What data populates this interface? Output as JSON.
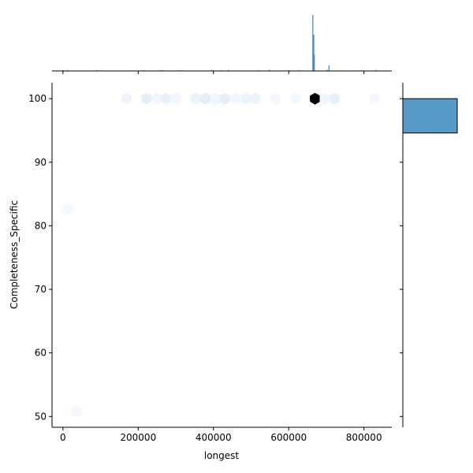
{
  "chart_data": {
    "type": "hexbin-jointplot",
    "xlabel": "longest",
    "ylabel": "Completeness_Specific",
    "xlim": [
      -29000,
      874000
    ],
    "ylim": [
      48.3,
      102.5
    ],
    "xticks": [
      "0",
      "200000",
      "400000",
      "600000",
      "800000"
    ],
    "xtick_values": [
      0,
      200000,
      400000,
      600000,
      800000
    ],
    "yticks": [
      "50",
      "60",
      "70",
      "80",
      "90",
      "100"
    ],
    "ytick_values": [
      50,
      60,
      70,
      80,
      90,
      100
    ],
    "colormap": "Blues",
    "hexbins": [
      {
        "x": 169000,
        "y": 100,
        "density": 0.05
      },
      {
        "x": 222000,
        "y": 100,
        "density": 0.09
      },
      {
        "x": 249000,
        "y": 100,
        "density": 0.03
      },
      {
        "x": 274000,
        "y": 100,
        "density": 0.08
      },
      {
        "x": 302000,
        "y": 100,
        "density": 0.03
      },
      {
        "x": 353000,
        "y": 100,
        "density": 0.06
      },
      {
        "x": 379000,
        "y": 100,
        "density": 0.1
      },
      {
        "x": 406000,
        "y": 100,
        "density": 0.04
      },
      {
        "x": 431000,
        "y": 100,
        "density": 0.09
      },
      {
        "x": 459000,
        "y": 100,
        "density": 0.03
      },
      {
        "x": 486000,
        "y": 100,
        "density": 0.05
      },
      {
        "x": 511000,
        "y": 100,
        "density": 0.06
      },
      {
        "x": 565000,
        "y": 100,
        "density": 0.02
      },
      {
        "x": 618000,
        "y": 100,
        "density": 0.02
      },
      {
        "x": 670000,
        "y": 100,
        "density": 1.0
      },
      {
        "x": 696000,
        "y": 100,
        "density": 0.04
      },
      {
        "x": 722000,
        "y": 100,
        "density": 0.09
      },
      {
        "x": 829000,
        "y": 100,
        "density": 0.02
      },
      {
        "x": 12000,
        "y": 82.6,
        "density": 0.02
      },
      {
        "x": 36000,
        "y": 50.8,
        "density": 0.02
      }
    ],
    "top_marginal": {
      "color": "#4c8dbf",
      "bars": [
        {
          "x": 664000,
          "count": 100
        },
        {
          "x": 666500,
          "count": 65
        },
        {
          "x": 668000,
          "count": 29
        },
        {
          "x": 707000,
          "count": 10
        },
        {
          "x": 702000,
          "count": 2
        },
        {
          "x": 0,
          "count": 1
        },
        {
          "x": 12000,
          "count": 1
        },
        {
          "x": 90000,
          "count": 1
        },
        {
          "x": 215000,
          "count": 1
        },
        {
          "x": 260000,
          "count": 1
        },
        {
          "x": 265000,
          "count": 1
        },
        {
          "x": 310000,
          "count": 1
        },
        {
          "x": 395000,
          "count": 2
        },
        {
          "x": 420000,
          "count": 1
        },
        {
          "x": 440000,
          "count": 2
        },
        {
          "x": 520000,
          "count": 1
        },
        {
          "x": 548000,
          "count": 2
        },
        {
          "x": 603000,
          "count": 1
        },
        {
          "x": 627000,
          "count": 1
        },
        {
          "x": 832000,
          "count": 2
        }
      ]
    },
    "right_marginal": {
      "color": "#5799c7",
      "bars": [
        {
          "y0": 94.6,
          "y1": 100,
          "count": 1.0
        }
      ]
    }
  }
}
